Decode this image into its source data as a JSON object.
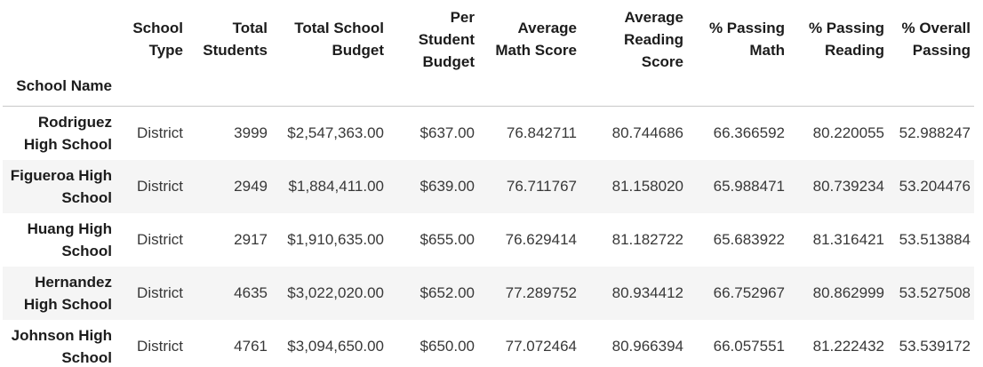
{
  "chart_data": {
    "type": "table",
    "index_name": "School Name",
    "columns": [
      "School Type",
      "Total Students",
      "Total School Budget",
      "Per Student Budget",
      "Average Math Score",
      "Average Reading Score",
      "% Passing Math",
      "% Passing Reading",
      "% Overall Passing"
    ],
    "rows": [
      {
        "index": "Rodriguez High School",
        "values": [
          "District",
          "3999",
          "$2,547,363.00",
          "$637.00",
          "76.842711",
          "80.744686",
          "66.366592",
          "80.220055",
          "52.988247"
        ]
      },
      {
        "index": "Figueroa High School",
        "values": [
          "District",
          "2949",
          "$1,884,411.00",
          "$639.00",
          "76.711767",
          "81.158020",
          "65.988471",
          "80.739234",
          "53.204476"
        ]
      },
      {
        "index": "Huang High School",
        "values": [
          "District",
          "2917",
          "$1,910,635.00",
          "$655.00",
          "76.629414",
          "81.182722",
          "65.683922",
          "81.316421",
          "53.513884"
        ]
      },
      {
        "index": "Hernandez High School",
        "values": [
          "District",
          "4635",
          "$3,022,020.00",
          "$652.00",
          "77.289752",
          "80.934412",
          "66.752967",
          "80.862999",
          "53.527508"
        ]
      },
      {
        "index": "Johnson High School",
        "values": [
          "District",
          "4761",
          "$3,094,650.00",
          "$650.00",
          "77.072464",
          "80.966394",
          "66.057551",
          "81.222432",
          "53.539172"
        ]
      }
    ],
    "layout": {
      "header_alignment": "right",
      "cell_alignment": "right",
      "striped_rows": "even",
      "grid": false
    },
    "colors": {
      "stripe_background": "#f5f5f5",
      "header_border": "#c8c8c8",
      "header_text": "#1c1c1c",
      "body_text": "#383838",
      "background": "#ffffff"
    }
  }
}
